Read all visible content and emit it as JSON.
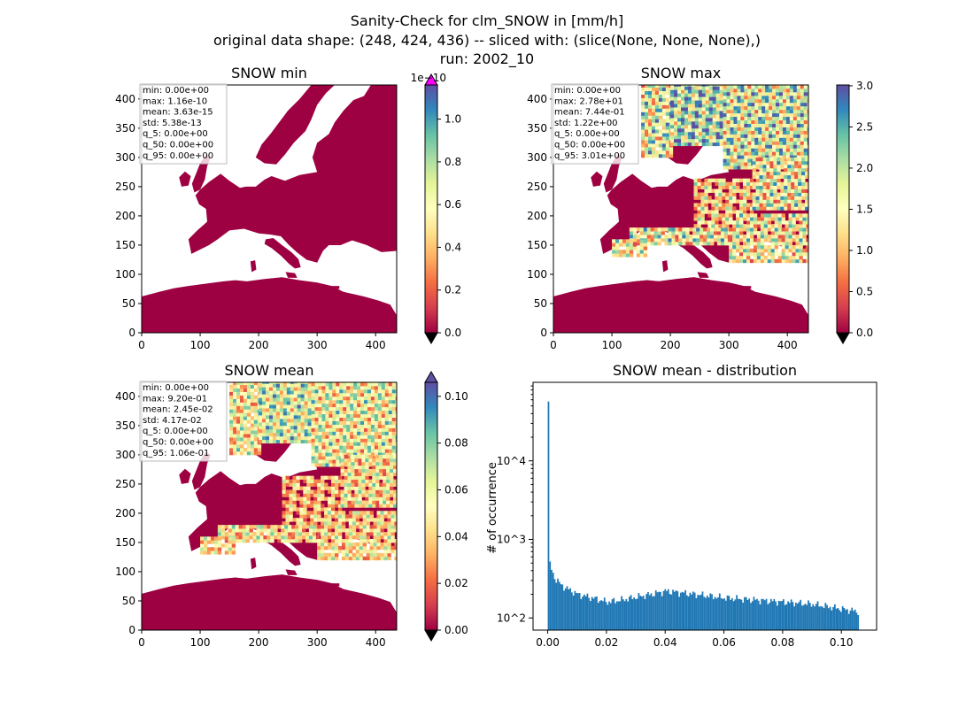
{
  "figure": {
    "title_lines": [
      "Sanity-Check for clm_SNOW in [mm/h]",
      "original data shape: (248, 424, 436) -- sliced with: (slice(None, None, None),)",
      "run: 2002_10"
    ]
  },
  "colors": {
    "land_low": "#9e0142",
    "sea": "#ffffff",
    "spectral": [
      "#9e0142",
      "#d53e4f",
      "#f46d43",
      "#fdae61",
      "#fee08b",
      "#ffffbf",
      "#e6f598",
      "#abdda4",
      "#66c2a5",
      "#3288bd",
      "#5e4fa2"
    ],
    "over_min": "#ff00ff",
    "under": "#000000",
    "hist_bar": "#1f77b4"
  },
  "chart_data": [
    {
      "type": "heatmap",
      "title": "SNOW min",
      "x_ticks": [
        "0",
        "100",
        "200",
        "300",
        "400"
      ],
      "y_ticks": [
        "0",
        "50",
        "100",
        "150",
        "200",
        "250",
        "300",
        "350",
        "400"
      ],
      "xlim": [
        0,
        436
      ],
      "ylim": [
        0,
        424
      ],
      "colorbar": {
        "ticks": [
          "0.0",
          "0.2",
          "0.4",
          "0.6",
          "0.8",
          "1.0"
        ],
        "range": [
          0,
          1.16e-10
        ],
        "multiplier": "1e−10",
        "extend": "both"
      },
      "stats": [
        "min: 0.00e+00",
        "max: 1.16e-10",
        "mean: 3.63e-15",
        "std: 5.38e-13",
        "q_5: 0.00e+00",
        "q_50: 0.00e+00",
        "q_95: 0.00e+00"
      ],
      "snow_intensity": 0
    },
    {
      "type": "heatmap",
      "title": "SNOW max",
      "x_ticks": [
        "0",
        "100",
        "200",
        "300",
        "400"
      ],
      "y_ticks": [
        "0",
        "50",
        "100",
        "150",
        "200",
        "250",
        "300",
        "350",
        "400"
      ],
      "xlim": [
        0,
        436
      ],
      "ylim": [
        0,
        424
      ],
      "colorbar": {
        "ticks": [
          "0.0",
          "0.5",
          "1.0",
          "1.5",
          "2.0",
          "2.5",
          "3.0"
        ],
        "range": [
          0,
          3.01
        ],
        "multiplier": "",
        "extend": "min"
      },
      "stats": [
        "min: 0.00e+00",
        "max: 2.78e+01",
        "mean: 7.44e-01",
        "std: 1.22e+00",
        "q_5: 0.00e+00",
        "q_50: 0.00e+00",
        "q_95: 3.01e+00"
      ],
      "snow_intensity": 1
    },
    {
      "type": "heatmap",
      "title": "SNOW mean",
      "x_ticks": [
        "0",
        "100",
        "200",
        "300",
        "400"
      ],
      "y_ticks": [
        "0",
        "50",
        "100",
        "150",
        "200",
        "250",
        "300",
        "350",
        "400"
      ],
      "xlim": [
        0,
        436
      ],
      "ylim": [
        0,
        424
      ],
      "colorbar": {
        "ticks": [
          "0.00",
          "0.02",
          "0.04",
          "0.06",
          "0.08",
          "0.10"
        ],
        "range": [
          0,
          0.106
        ],
        "multiplier": "",
        "extend": "both"
      },
      "stats": [
        "min: 0.00e+00",
        "max: 9.20e-01",
        "mean: 2.45e-02",
        "std: 4.17e-02",
        "q_5: 0.00e+00",
        "q_50: 0.00e+00",
        "q_95: 1.06e-01"
      ],
      "snow_intensity": 0.85
    },
    {
      "type": "bar",
      "title": "SNOW mean - distribution",
      "ylabel": "# of occurrence",
      "xlabel": "",
      "y_scale": "log",
      "x_ticks": [
        "0.00",
        "0.02",
        "0.04",
        "0.06",
        "0.08",
        "0.10"
      ],
      "y_ticks": [
        "10^2",
        "10^3",
        "10^4"
      ],
      "xlim": [
        -0.005,
        0.112
      ],
      "ylim": [
        70,
        100000
      ],
      "x": [
        0.0,
        0.0005,
        0.001,
        0.002,
        0.004,
        0.006,
        0.008,
        0.01,
        0.015,
        0.02,
        0.025,
        0.03,
        0.035,
        0.04,
        0.045,
        0.05,
        0.055,
        0.06,
        0.065,
        0.07,
        0.075,
        0.08,
        0.085,
        0.09,
        0.095,
        0.1,
        0.106
      ],
      "values": [
        57000,
        480,
        420,
        330,
        270,
        240,
        220,
        200,
        180,
        160,
        170,
        185,
        200,
        220,
        210,
        200,
        190,
        180,
        175,
        170,
        165,
        160,
        155,
        150,
        140,
        130,
        120
      ]
    }
  ]
}
